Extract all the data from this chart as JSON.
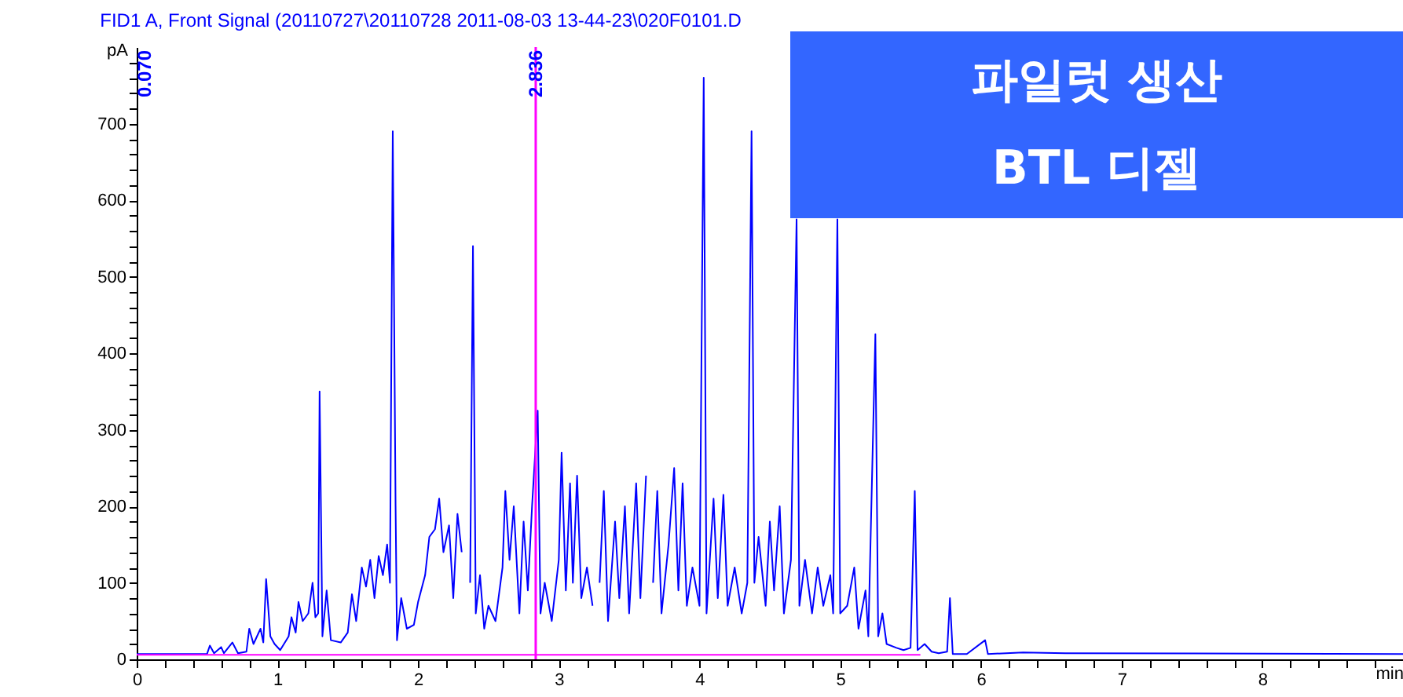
{
  "chart_data": {
    "type": "line",
    "title": "FID1 A, Front Signal (20110727\\20110728 2011-08-03 13-44-23\\020F0101.D",
    "xlabel": "min",
    "ylabel": "pA",
    "xlim": [
      0,
      9
    ],
    "ylim": [
      0,
      800
    ],
    "xticks": [
      0,
      {
        "value": 0.2,
        "label": null
      },
      {
        "value": 0.4,
        "label": null
      },
      {
        "value": 0.6,
        "label": null
      },
      {
        "value": 0.8,
        "label": null
      },
      1,
      {
        "value": 1.2,
        "label": null
      },
      {
        "value": 1.4,
        "label": null
      },
      {
        "value": 1.6,
        "label": null
      },
      {
        "value": 1.8,
        "label": null
      },
      2,
      {
        "value": 2.2,
        "label": null
      },
      {
        "value": 2.4,
        "label": null
      },
      {
        "value": 2.6,
        "label": null
      },
      {
        "value": 2.8,
        "label": null
      },
      3,
      {
        "value": 3.2,
        "label": null
      },
      {
        "value": 3.4,
        "label": null
      },
      {
        "value": 3.6,
        "label": null
      },
      {
        "value": 3.8,
        "label": null
      },
      4,
      {
        "value": 4.2,
        "label": null
      },
      {
        "value": 4.4,
        "label": null
      },
      {
        "value": 4.6,
        "label": null
      },
      {
        "value": 4.8,
        "label": null
      },
      5,
      {
        "value": 5.2,
        "label": null
      },
      {
        "value": 5.4,
        "label": null
      },
      {
        "value": 5.6,
        "label": null
      },
      {
        "value": 5.8,
        "label": null
      },
      6,
      {
        "value": 6.2,
        "label": null
      },
      {
        "value": 6.4,
        "label": null
      },
      {
        "value": 6.6,
        "label": null
      },
      {
        "value": 6.8,
        "label": null
      },
      7,
      {
        "value": 7.2,
        "label": null
      },
      {
        "value": 7.4,
        "label": null
      },
      {
        "value": 7.6,
        "label": null
      },
      {
        "value": 7.8,
        "label": null
      },
      8,
      {
        "value": 8.2,
        "label": null
      },
      {
        "value": 8.4,
        "label": null
      },
      {
        "value": 8.6,
        "label": null
      },
      {
        "value": 8.8,
        "label": null
      }
    ],
    "yticks": [
      0,
      {
        "value": 20,
        "label": null
      },
      {
        "value": 40,
        "label": null
      },
      {
        "value": 60,
        "label": null
      },
      {
        "value": 80,
        "label": null
      },
      100,
      {
        "value": 120,
        "label": null
      },
      {
        "value": 140,
        "label": null
      },
      {
        "value": 160,
        "label": null
      },
      {
        "value": 180,
        "label": null
      },
      200,
      {
        "value": 220,
        "label": null
      },
      {
        "value": 240,
        "label": null
      },
      {
        "value": 260,
        "label": null
      },
      {
        "value": 280,
        "label": null
      },
      300,
      {
        "value": 320,
        "label": null
      },
      {
        "value": 340,
        "label": null
      },
      {
        "value": 360,
        "label": null
      },
      {
        "value": 380,
        "label": null
      },
      400,
      {
        "value": 420,
        "label": null
      },
      {
        "value": 440,
        "label": null
      },
      {
        "value": 460,
        "label": null
      },
      {
        "value": 480,
        "label": null
      },
      500,
      {
        "value": 520,
        "label": null
      },
      {
        "value": 540,
        "label": null
      },
      {
        "value": 560,
        "label": null
      },
      {
        "value": 580,
        "label": null
      },
      600,
      {
        "value": 620,
        "label": null
      },
      {
        "value": 640,
        "label": null
      },
      {
        "value": 660,
        "label": null
      },
      {
        "value": 680,
        "label": null
      },
      700,
      {
        "value": 720,
        "label": null
      },
      {
        "value": 740,
        "label": null
      },
      {
        "value": 760,
        "label": null
      },
      {
        "value": 780,
        "label": null
      }
    ],
    "series": [
      {
        "color": "#0000ff",
        "x": [
          0,
          0.5,
          0.52,
          0.55,
          0.6,
          0.62,
          0.68,
          0.72,
          0.78,
          0.8,
          0.83,
          0.88,
          0.9,
          0.92,
          0.95,
          0.98,
          1.02,
          1.08,
          1.1,
          1.13,
          1.15,
          1.18,
          1.22,
          1.25,
          1.27,
          1.29,
          1.3,
          1.32,
          1.35,
          1.38,
          1.45,
          1.5,
          1.53,
          1.56,
          1.6,
          1.63,
          1.66,
          1.69,
          1.72,
          1.75,
          1.78,
          1.8,
          1.82,
          1.84,
          1.85,
          1.88,
          1.92,
          1.97,
          2.0,
          2.05,
          2.08,
          2.12,
          2.15,
          2.18,
          2.22,
          2.25,
          2.28,
          2.31,
          2.35,
          2.37,
          2.39,
          2.41,
          2.44,
          2.47,
          2.5,
          2.55,
          2.6,
          2.62,
          2.65,
          2.68,
          2.72,
          2.75,
          2.78,
          2.81,
          2.85,
          2.87,
          2.9,
          2.95,
          3.0,
          3.02,
          3.05,
          3.08,
          3.1,
          3.13,
          3.16,
          3.2,
          3.24,
          3.27,
          3.29,
          3.32,
          3.35,
          3.4,
          3.43,
          3.47,
          3.5,
          3.55,
          3.58,
          3.62,
          3.65,
          3.67,
          3.7,
          3.73,
          3.78,
          3.82,
          3.85,
          3.88,
          3.91,
          3.95,
          4.0,
          4.03,
          4.05,
          4.1,
          4.13,
          4.17,
          4.2,
          4.25,
          4.3,
          4.34,
          4.37,
          4.39,
          4.42,
          4.47,
          4.5,
          4.53,
          4.57,
          4.6,
          4.65,
          4.69,
          4.71,
          4.75,
          4.8,
          4.84,
          4.88,
          4.93,
          4.95,
          4.98,
          5.0,
          5.05,
          5.1,
          5.13,
          5.18,
          5.2,
          5.25,
          5.27,
          5.3,
          5.33,
          5.4,
          5.45,
          5.5,
          5.53,
          5.55,
          5.6,
          5.65,
          5.7,
          5.76,
          5.78,
          5.8,
          5.9,
          6.03,
          6.05,
          6.3,
          6.6,
          9.0
        ],
        "values": [
          7,
          7,
          18,
          8,
          16,
          8,
          22,
          8,
          10,
          40,
          20,
          40,
          22,
          105,
          30,
          20,
          12,
          30,
          55,
          35,
          75,
          50,
          60,
          100,
          55,
          60,
          350,
          30,
          90,
          25,
          22,
          35,
          85,
          50,
          120,
          95,
          130,
          80,
          135,
          110,
          150,
          100,
          690,
          200,
          25,
          80,
          40,
          45,
          75,
          110,
          160,
          170,
          210,
          140,
          175,
          80,
          190,
          140,
          null,
          100,
          540,
          60,
          110,
          40,
          70,
          50,
          120,
          220,
          130,
          200,
          60,
          180,
          90,
          200,
          325,
          60,
          100,
          50,
          130,
          270,
          90,
          230,
          100,
          240,
          80,
          120,
          70,
          null,
          100,
          220,
          50,
          180,
          80,
          200,
          60,
          230,
          80,
          240,
          null,
          100,
          220,
          60,
          150,
          250,
          90,
          230,
          70,
          120,
          70,
          760,
          60,
          210,
          80,
          215,
          70,
          120,
          60,
          100,
          690,
          100,
          160,
          70,
          180,
          90,
          200,
          60,
          130,
          575,
          70,
          130,
          60,
          120,
          70,
          110,
          60,
          575,
          60,
          70,
          120,
          40,
          90,
          30,
          425,
          30,
          60,
          20,
          15,
          12,
          15,
          220,
          12,
          20,
          10,
          8,
          10,
          80,
          7,
          7,
          25,
          7,
          9,
          8,
          7
        ]
      },
      {
        "color": "#ff00ff",
        "x": [
          0,
          5.57
        ],
        "values": [
          6,
          6
        ]
      }
    ],
    "ref_lines": [
      {
        "axis": "x",
        "value": 2.836,
        "label": "2.836",
        "color": "#ff00ff"
      }
    ],
    "annotations": [
      "0.070",
      "파일럿 생산",
      "BTL 디젤"
    ]
  }
}
